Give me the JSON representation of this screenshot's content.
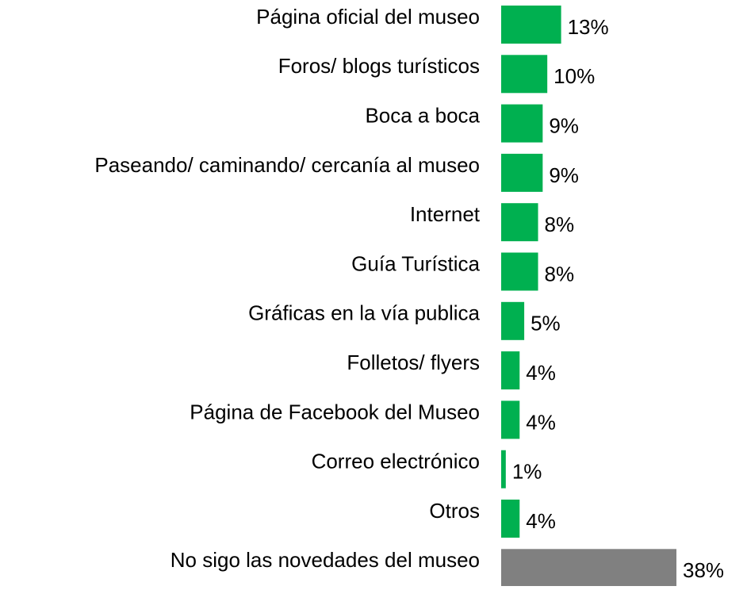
{
  "chart_data": {
    "type": "hbar",
    "categories": [
      "Página oficial del museo",
      "Foros/ blogs turísticos",
      "Boca a boca",
      "Paseando/ caminando/ cercanía al museo",
      "Internet",
      "Guía Turística",
      "Gráficas en la vía publica",
      "Folletos/ flyers",
      "Página de Facebook del Museo",
      "Correo electrónico",
      "Otros",
      "No sigo las novedades del museo"
    ],
    "values": [
      13,
      10,
      9,
      9,
      8,
      8,
      5,
      4,
      4,
      1,
      4,
      38
    ],
    "value_labels": [
      "13%",
      "10%",
      "9%",
      "9%",
      "8%",
      "8%",
      "5%",
      "4%",
      "4%",
      "1%",
      "4%",
      "38%"
    ],
    "colors": [
      "#00b050",
      "#00b050",
      "#00b050",
      "#00b050",
      "#00b050",
      "#00b050",
      "#00b050",
      "#00b050",
      "#00b050",
      "#00b050",
      "#00b050",
      "#808080"
    ]
  }
}
